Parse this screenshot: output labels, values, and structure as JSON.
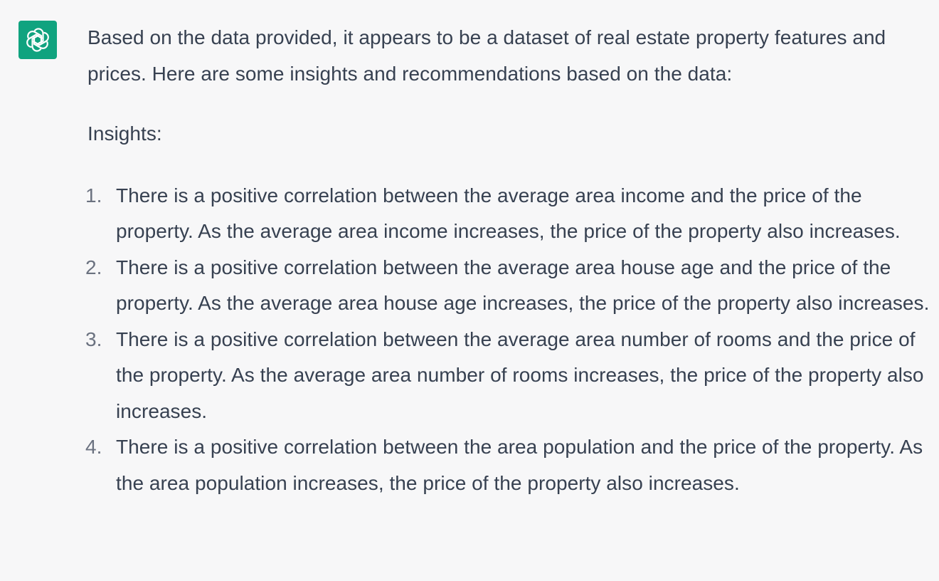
{
  "assistant": {
    "icon": "openai-logo-icon",
    "accent_color": "#10a37f"
  },
  "message": {
    "intro": "Based on the data provided, it appears to be a dataset of real estate property features and prices. Here are some insights and recommendations based on the data:",
    "insights_heading": "Insights:",
    "items": [
      {
        "number": "1.",
        "text": "There is a positive correlation between the average area income and the price of the property. As the average area income increases, the price of the property also increases."
      },
      {
        "number": "2.",
        "text": "There is a positive correlation between the average area house age and the price of the property. As the average area house age increases, the price of the property also increases."
      },
      {
        "number": "3.",
        "text": "There is a positive correlation between the average area number of rooms and the price of the property. As the average area number of rooms increases, the price of the property also increases."
      },
      {
        "number": "4.",
        "text": "There is a positive correlation between the area population and the price of the property. As the area population increases, the price of the property also increases."
      }
    ]
  }
}
